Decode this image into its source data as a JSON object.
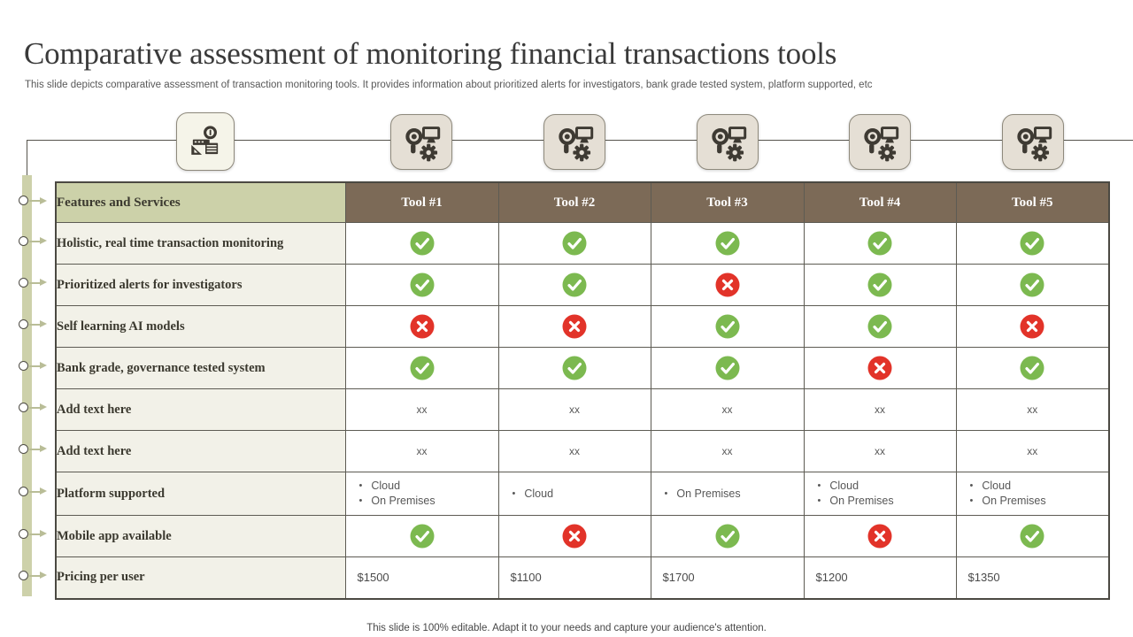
{
  "slide": {
    "title": "Comparative assessment of monitoring financial transactions tools",
    "subtitle": "This slide depicts comparative assessment of transaction monitoring tools. It provides information about prioritized alerts for investigators, bank grade tested system, platform supported, etc",
    "footer": "This slide is 100% editable. Adapt it to your needs and capture your audience's attention."
  },
  "icons": {
    "feature_tile": "cash-money-icon",
    "tool_tile": "monitoring-settings-icon",
    "yes": "check-icon",
    "no": "cross-icon",
    "bullet": "•"
  },
  "colors": {
    "header_brown": "#7c6a57",
    "header_green": "#ccd1a9",
    "label_bg": "#f2f1e8",
    "check_green": "#7cb950",
    "cross_red": "#e23329",
    "rail_green": "#cdd1aa",
    "icon_dark": "#3e3a33",
    "tile_beige": "#e5dfd5",
    "tile_cream": "#f5f4e9"
  },
  "table": {
    "feature_header": "Features and Services",
    "tool_headers": [
      "Tool #1",
      "Tool #2",
      "Tool #3",
      "Tool #4",
      "Tool #5"
    ],
    "rows": [
      {
        "label": "Holistic, real time transaction monitoring",
        "cells": [
          {
            "type": "check"
          },
          {
            "type": "check"
          },
          {
            "type": "check"
          },
          {
            "type": "check"
          },
          {
            "type": "check"
          }
        ]
      },
      {
        "label": "Prioritized alerts for investigators",
        "cells": [
          {
            "type": "check"
          },
          {
            "type": "check"
          },
          {
            "type": "cross"
          },
          {
            "type": "check"
          },
          {
            "type": "check"
          }
        ]
      },
      {
        "label": "Self learning AI models",
        "cells": [
          {
            "type": "cross"
          },
          {
            "type": "cross"
          },
          {
            "type": "check"
          },
          {
            "type": "check"
          },
          {
            "type": "cross"
          }
        ]
      },
      {
        "label": "Bank grade, governance tested system",
        "cells": [
          {
            "type": "check"
          },
          {
            "type": "check"
          },
          {
            "type": "check"
          },
          {
            "type": "cross"
          },
          {
            "type": "check"
          }
        ]
      },
      {
        "label": "Add text here",
        "cells": [
          {
            "type": "text",
            "value": "xx"
          },
          {
            "type": "text",
            "value": "xx"
          },
          {
            "type": "text",
            "value": "xx"
          },
          {
            "type": "text",
            "value": "xx"
          },
          {
            "type": "text",
            "value": "xx"
          }
        ]
      },
      {
        "label": "Add text here",
        "cells": [
          {
            "type": "text",
            "value": "xx"
          },
          {
            "type": "text",
            "value": "xx"
          },
          {
            "type": "text",
            "value": "xx"
          },
          {
            "type": "text",
            "value": "xx"
          },
          {
            "type": "text",
            "value": "xx"
          }
        ]
      },
      {
        "label": "Platform supported",
        "tall": true,
        "cells": [
          {
            "type": "list",
            "items": [
              "Cloud",
              "On Premises"
            ]
          },
          {
            "type": "list",
            "items": [
              "Cloud"
            ]
          },
          {
            "type": "list",
            "items": [
              "On Premises"
            ]
          },
          {
            "type": "list",
            "items": [
              "Cloud",
              "On Premises"
            ]
          },
          {
            "type": "list",
            "items": [
              "Cloud",
              "On Premises"
            ]
          }
        ]
      },
      {
        "label": "Mobile app available",
        "cells": [
          {
            "type": "check"
          },
          {
            "type": "cross"
          },
          {
            "type": "check"
          },
          {
            "type": "cross"
          },
          {
            "type": "check"
          }
        ]
      },
      {
        "label": "Pricing per user",
        "cells": [
          {
            "type": "price",
            "value": "$1500"
          },
          {
            "type": "price",
            "value": "$1100"
          },
          {
            "type": "price",
            "value": "$1700"
          },
          {
            "type": "price",
            "value": "$1200"
          },
          {
            "type": "price",
            "value": "$1350"
          }
        ]
      }
    ]
  }
}
